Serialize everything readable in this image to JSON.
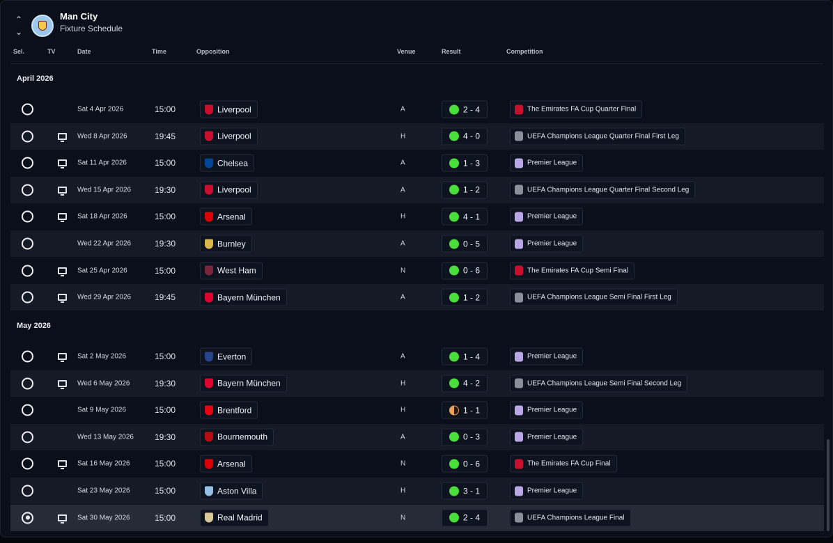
{
  "header": {
    "title": "Man City",
    "subtitle": "Fixture Schedule"
  },
  "columns": {
    "sel": "Sel.",
    "tv": "TV",
    "date": "Date",
    "time": "Time",
    "opposition": "Opposition",
    "venue": "Venue",
    "result": "Result",
    "competition": "Competition"
  },
  "colors": {
    "win": "#4ade3a",
    "draw": "#f0a050",
    "background": "#0b0f1a"
  },
  "months": [
    {
      "label": "April 2026",
      "fixtures": [
        {
          "selected": false,
          "tv": false,
          "date": "Sat 4 Apr 2026",
          "time": "15:00",
          "opposition": "Liverpool",
          "badge": "#c8102e",
          "venue": "A",
          "result": "2 - 4",
          "outcome": "win",
          "competition": "The Emirates FA Cup Quarter Final",
          "comp_icon": "fa-cup"
        },
        {
          "selected": false,
          "tv": true,
          "date": "Wed 8 Apr 2026",
          "time": "19:45",
          "opposition": "Liverpool",
          "badge": "#c8102e",
          "venue": "H",
          "result": "4 - 0",
          "outcome": "win",
          "competition": "UEFA Champions League Quarter Final First Leg",
          "comp_icon": "ucl"
        },
        {
          "selected": false,
          "tv": true,
          "date": "Sat 11 Apr 2026",
          "time": "15:00",
          "opposition": "Chelsea",
          "badge": "#034694",
          "venue": "A",
          "result": "1 - 3",
          "outcome": "win",
          "competition": "Premier League",
          "comp_icon": "pl"
        },
        {
          "selected": false,
          "tv": true,
          "date": "Wed 15 Apr 2026",
          "time": "19:30",
          "opposition": "Liverpool",
          "badge": "#c8102e",
          "venue": "A",
          "result": "1 - 2",
          "outcome": "win",
          "competition": "UEFA Champions League Quarter Final Second Leg",
          "comp_icon": "ucl"
        },
        {
          "selected": false,
          "tv": true,
          "date": "Sat 18 Apr 2026",
          "time": "15:00",
          "opposition": "Arsenal",
          "badge": "#db0007",
          "venue": "H",
          "result": "4 - 1",
          "outcome": "win",
          "competition": "Premier League",
          "comp_icon": "pl"
        },
        {
          "selected": false,
          "tv": false,
          "date": "Wed 22 Apr 2026",
          "time": "19:30",
          "opposition": "Burnley",
          "badge": "#d9b64a",
          "venue": "A",
          "result": "0 - 5",
          "outcome": "win",
          "competition": "Premier League",
          "comp_icon": "pl"
        },
        {
          "selected": false,
          "tv": true,
          "date": "Sat 25 Apr 2026",
          "time": "15:00",
          "opposition": "West Ham",
          "badge": "#7a263a",
          "venue": "N",
          "result": "0 - 6",
          "outcome": "win",
          "competition": "The Emirates FA Cup Semi Final",
          "comp_icon": "fa-cup"
        },
        {
          "selected": false,
          "tv": true,
          "date": "Wed 29 Apr 2026",
          "time": "19:45",
          "opposition": "Bayern München",
          "badge": "#dc052d",
          "venue": "A",
          "result": "1 - 2",
          "outcome": "win",
          "competition": "UEFA Champions League Semi Final First Leg",
          "comp_icon": "ucl"
        }
      ]
    },
    {
      "label": "May 2026",
      "fixtures": [
        {
          "selected": false,
          "tv": true,
          "date": "Sat 2 May 2026",
          "time": "15:00",
          "opposition": "Everton",
          "badge": "#274488",
          "venue": "A",
          "result": "1 - 4",
          "outcome": "win",
          "competition": "Premier League",
          "comp_icon": "pl"
        },
        {
          "selected": false,
          "tv": true,
          "date": "Wed 6 May 2026",
          "time": "19:30",
          "opposition": "Bayern München",
          "badge": "#dc052d",
          "venue": "H",
          "result": "4 - 2",
          "outcome": "win",
          "competition": "UEFA Champions League Semi Final Second Leg",
          "comp_icon": "ucl"
        },
        {
          "selected": false,
          "tv": false,
          "date": "Sat 9 May 2026",
          "time": "15:00",
          "opposition": "Brentford",
          "badge": "#e30613",
          "venue": "H",
          "result": "1 - 1",
          "outcome": "draw",
          "competition": "Premier League",
          "comp_icon": "pl"
        },
        {
          "selected": false,
          "tv": false,
          "date": "Wed 13 May 2026",
          "time": "19:30",
          "opposition": "Bournemouth",
          "badge": "#b50e12",
          "venue": "A",
          "result": "0 - 3",
          "outcome": "win",
          "competition": "Premier League",
          "comp_icon": "pl"
        },
        {
          "selected": false,
          "tv": true,
          "date": "Sat 16 May 2026",
          "time": "15:00",
          "opposition": "Arsenal",
          "badge": "#db0007",
          "venue": "N",
          "result": "0 - 6",
          "outcome": "win",
          "competition": "The Emirates FA Cup Final",
          "comp_icon": "fa-cup"
        },
        {
          "selected": false,
          "tv": false,
          "date": "Sat 23 May 2026",
          "time": "15:00",
          "opposition": "Aston Villa",
          "badge": "#95bfe5",
          "venue": "H",
          "result": "3 - 1",
          "outcome": "win",
          "competition": "Premier League",
          "comp_icon": "pl"
        },
        {
          "selected": true,
          "tv": true,
          "date": "Sat 30 May 2026",
          "time": "15:00",
          "opposition": "Real Madrid",
          "badge": "#d8c99b",
          "venue": "N",
          "result": "2 - 4",
          "outcome": "win",
          "competition": "UEFA Champions League Final",
          "comp_icon": "ucl"
        }
      ]
    }
  ]
}
